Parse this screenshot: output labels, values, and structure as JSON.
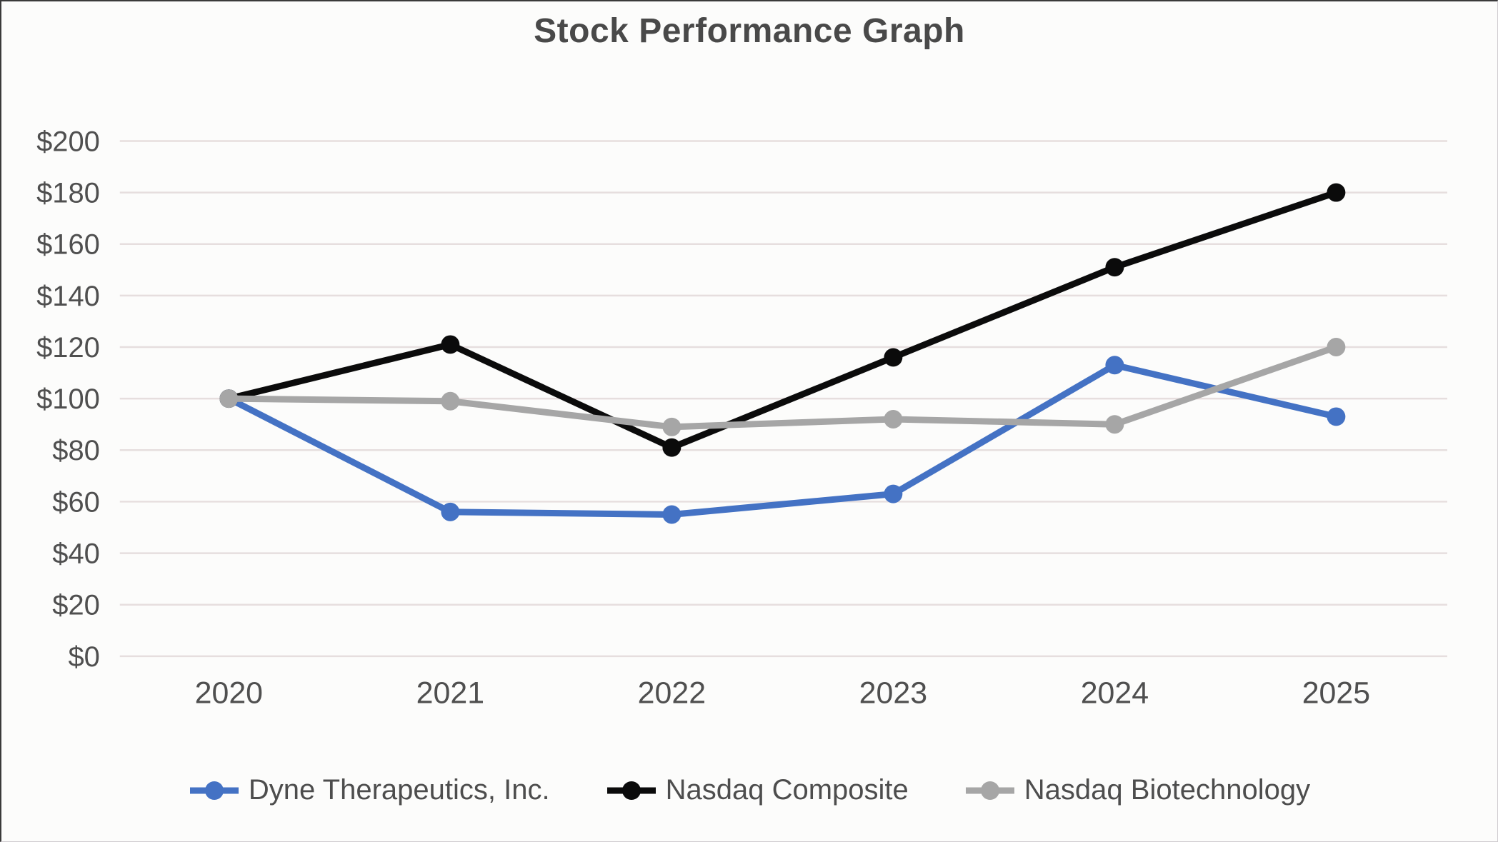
{
  "chart_data": {
    "type": "line",
    "title": "Stock Performance Graph",
    "categories": [
      "2020",
      "2021",
      "2022",
      "2023",
      "2024",
      "2025"
    ],
    "series": [
      {
        "name": "Dyne Therapeutics, Inc.",
        "color": "#4472C4",
        "values": [
          100,
          56,
          55,
          63,
          113,
          93
        ]
      },
      {
        "name": "Nasdaq Composite",
        "color": "#0b0b0b",
        "values": [
          100,
          121,
          81,
          116,
          151,
          180
        ]
      },
      {
        "name": "Nasdaq Biotechnology",
        "color": "#A6A6A6",
        "values": [
          100,
          99,
          89,
          92,
          90,
          120
        ]
      }
    ],
    "y_axis": {
      "min": 0,
      "max": 200,
      "step": 20,
      "tick_prefix": "$"
    },
    "xlabel": "",
    "ylabel": "",
    "grid": true,
    "legend_position": "bottom",
    "colors": {
      "grid_line": "#e6dede",
      "axis_text": "#4f4f4f",
      "title_text": "#494949"
    }
  }
}
